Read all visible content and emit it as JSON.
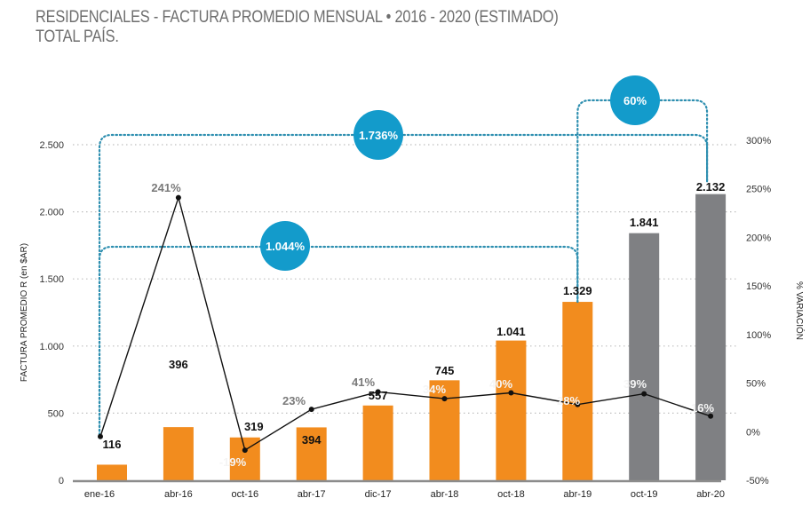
{
  "title_line1": "RESIDENCIALES - FACTURA PROMEDIO MENSUAL • 2016 - 2020 (ESTIMADO)",
  "title_line2": "TOTAL PAÍS.",
  "colors": {
    "actual_bar": "#F28C1E",
    "estimated_bar": "#7F8083",
    "bubble": "#139BCB",
    "bracket": "#2E8FB0",
    "line": "#111111",
    "pct_label_dark": "#7A7A7A",
    "pct_label_light": "#F5F5F5",
    "grid": "#BFBFBF",
    "baseline": "#8C8C8C"
  },
  "chart_data": {
    "type": "bar",
    "title": "RESIDENCIALES - FACTURA PROMEDIO MENSUAL • 2016 - 2020 (ESTIMADO) TOTAL PAÍS.",
    "categories": [
      "ene-16",
      "abr-16",
      "oct-16",
      "abr-17",
      "dic-17",
      "abr-18",
      "oct-18",
      "abr-19",
      "oct-19",
      "abr-20"
    ],
    "ylabel": "FACTURA PROMEDIO R (en $AR)",
    "y2label": "% VARIACIÓN",
    "ylim": [
      0,
      2500
    ],
    "y2lim": [
      -50,
      300
    ],
    "yticks": [
      0,
      500,
      1000,
      1500,
      2000,
      2500
    ],
    "ytick_labels": [
      "0",
      "500",
      "1.000",
      "1.500",
      "2.000",
      "2.500"
    ],
    "y2ticks": [
      -50,
      0,
      50,
      100,
      150,
      200,
      250,
      300
    ],
    "y2tick_labels": [
      "-50%",
      "0%",
      "50%",
      "100%",
      "150%",
      "200%",
      "250%",
      "300%"
    ],
    "grid": true,
    "series": [
      {
        "name": "Factura promedio",
        "type": "bar",
        "axis": "left",
        "values": [
          116,
          396,
          319,
          394,
          557,
          745,
          1041,
          1329,
          1841,
          2132
        ],
        "labels": [
          "116",
          "396",
          "319",
          "394",
          "557",
          "745",
          "1.041",
          "1.329",
          "1.841",
          "2.132"
        ],
        "estimated": [
          false,
          false,
          false,
          false,
          false,
          false,
          false,
          false,
          true,
          true
        ]
      },
      {
        "name": "% Variación",
        "type": "line",
        "axis": "right",
        "values": [
          -5,
          241,
          -19,
          23,
          41,
          34,
          40,
          28,
          39,
          16
        ],
        "labels": [
          "",
          "241%",
          "-19%",
          "23%",
          "41%",
          "34%",
          "40%",
          "28%",
          "39%",
          "16%"
        ]
      }
    ],
    "annotations": [
      {
        "label": "1.736%",
        "from": "ene-16",
        "to": "abr-20"
      },
      {
        "label": "1.044%",
        "from": "ene-16",
        "to": "abr-19"
      },
      {
        "label": "60%",
        "from": "abr-19",
        "to": "abr-20"
      }
    ]
  }
}
